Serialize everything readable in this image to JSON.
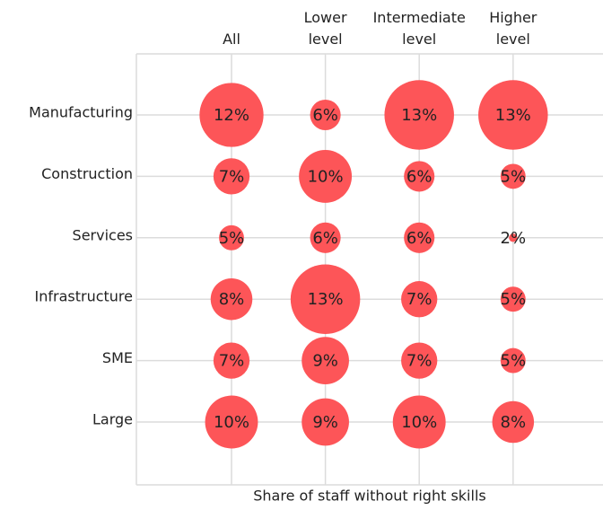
{
  "chart_data": {
    "type": "bubble",
    "xlabel": "Share of staff without right skills",
    "categories": [
      "All",
      "Lower level",
      "Intermediate level",
      "Higher level"
    ],
    "color": "#fd5558",
    "series": [
      {
        "name": "Manufacturing",
        "values": [
          12,
          6,
          13,
          13
        ],
        "value_labels": [
          "12%",
          "6%",
          "13%",
          "13%"
        ]
      },
      {
        "name": "Construction",
        "values": [
          7,
          10,
          6,
          5
        ],
        "value_labels": [
          "7%",
          "10%",
          "6%",
          "5%"
        ]
      },
      {
        "name": "Services",
        "values": [
          5,
          6,
          6,
          2
        ],
        "value_labels": [
          "5%",
          "6%",
          "6%",
          "2%"
        ]
      },
      {
        "name": "Infrastructure",
        "values": [
          8,
          13,
          7,
          5
        ],
        "value_labels": [
          "8%",
          "13%",
          "7%",
          "5%"
        ]
      },
      {
        "name": "SME",
        "values": [
          7,
          9,
          7,
          5
        ],
        "value_labels": [
          "7%",
          "9%",
          "7%",
          "5%"
        ]
      },
      {
        "name": "Large",
        "values": [
          10,
          9,
          10,
          8
        ],
        "value_labels": [
          "10%",
          "9%",
          "10%",
          "8%"
        ]
      }
    ]
  }
}
